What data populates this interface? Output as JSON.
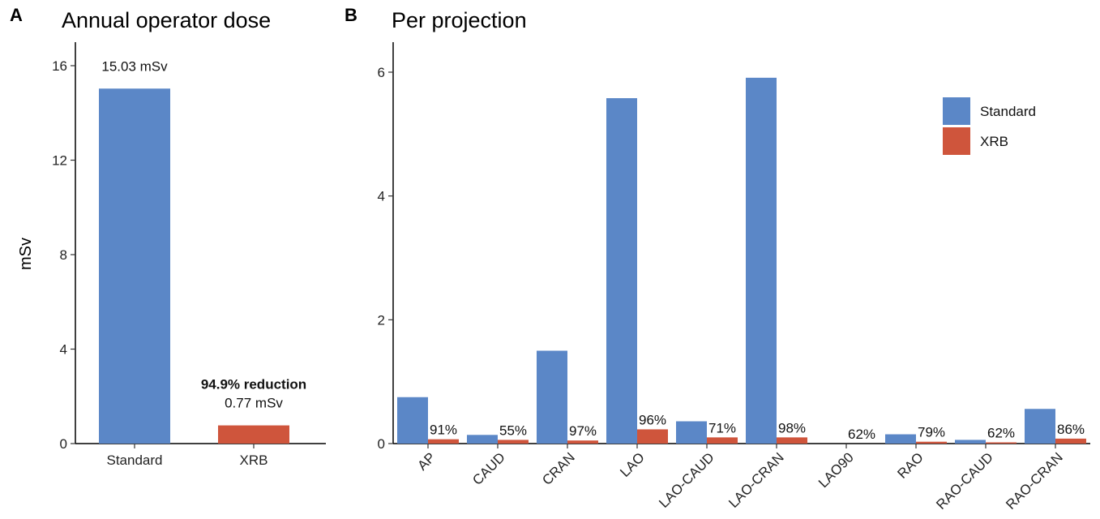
{
  "colors": {
    "standard": "#5b87c7",
    "xrb": "#cf553c"
  },
  "chart_data": [
    {
      "panel": "A",
      "title": "Annual operator dose",
      "type": "bar",
      "ylabel": "mSv",
      "ylim": [
        0,
        16
      ],
      "yticks": [
        0,
        4,
        8,
        12,
        16
      ],
      "categories": [
        "Standard",
        "XRB"
      ],
      "values": [
        15.03,
        0.77
      ],
      "value_labels": [
        "15.03 mSv",
        "0.77 mSv"
      ],
      "annotation": "94.9% reduction"
    },
    {
      "panel": "B",
      "title": "Per projection",
      "type": "bar",
      "ylim": [
        0,
        6.5
      ],
      "yticks": [
        0,
        2,
        4,
        6
      ],
      "categories": [
        "AP",
        "CAUD",
        "CRAN",
        "LAO",
        "LAO-CAUD",
        "LAO-CRAN",
        "LAO90",
        "RAO",
        "RAO-CAUD",
        "RAO-CRAN"
      ],
      "series": [
        {
          "name": "Standard",
          "values": [
            0.75,
            0.14,
            1.5,
            5.58,
            0.36,
            5.91,
            0.0,
            0.15,
            0.06,
            0.56
          ]
        },
        {
          "name": "XRB",
          "values": [
            0.07,
            0.06,
            0.05,
            0.23,
            0.1,
            0.1,
            0.0,
            0.03,
            0.02,
            0.08
          ]
        }
      ],
      "reduction_labels": [
        "91%",
        "55%",
        "97%",
        "96%",
        "71%",
        "98%",
        "62%",
        "79%",
        "62%",
        "86%"
      ],
      "legend": [
        "Standard",
        "XRB"
      ],
      "legend_position": "top-right"
    }
  ]
}
